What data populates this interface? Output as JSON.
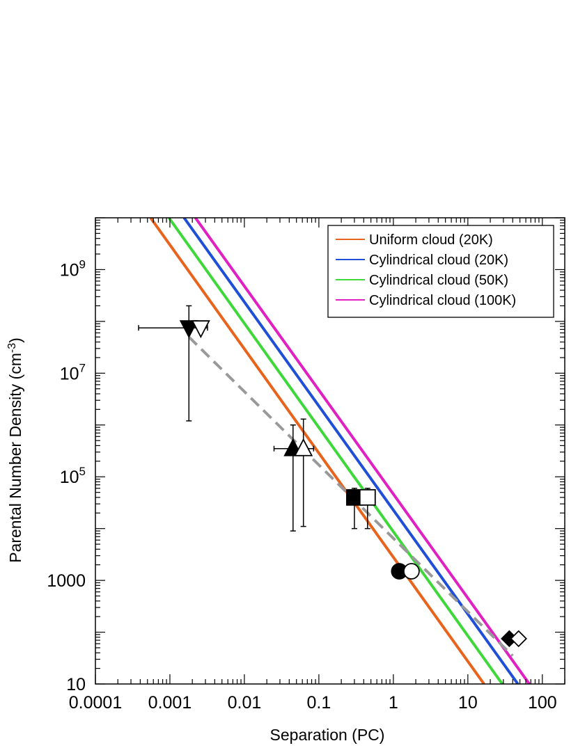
{
  "chart_data": {
    "type": "scatter",
    "xlabel": "Separation (PC)",
    "ylabel_main": "Parental Number Density (cm",
    "ylabel_sup": "-3",
    "ylabel_end": ")",
    "x_scale": "log",
    "y_scale": "log",
    "xlim": [
      0.0001,
      200
    ],
    "ylim": [
      10,
      10000000000
    ],
    "grid": false,
    "legend_placement": "top-right",
    "x_ticks": [
      {
        "value": 0.0001,
        "label": "0.0001"
      },
      {
        "value": 0.001,
        "label": "0.001"
      },
      {
        "value": 0.01,
        "label": "0.01"
      },
      {
        "value": 0.1,
        "label": "0.1"
      },
      {
        "value": 1,
        "label": "1"
      },
      {
        "value": 10,
        "label": "10"
      },
      {
        "value": 100,
        "label": "100"
      }
    ],
    "y_ticks": [
      {
        "value": 10,
        "base": "10",
        "exp": ""
      },
      {
        "value": 1000,
        "base": "1000",
        "exp": ""
      },
      {
        "value": 100000,
        "base": "10",
        "exp": "5"
      },
      {
        "value": 10000000,
        "base": "10",
        "exp": "7"
      },
      {
        "value": 1000000000,
        "base": "10",
        "exp": "9"
      }
    ],
    "model_lines": [
      {
        "name": "Uniform cloud (20K)",
        "color": "#e8641c",
        "x": [
          0.00055,
          16.5
        ],
        "y": [
          10000000000,
          10
        ]
      },
      {
        "name": "Cylindrical cloud (20K)",
        "color": "#1f4fd6",
        "x": [
          0.00155,
          47
        ],
        "y": [
          10000000000,
          10
        ]
      },
      {
        "name": "Cylindrical cloud (50K)",
        "color": "#3ed83a",
        "x": [
          0.00097,
          29
        ],
        "y": [
          10000000000,
          10
        ]
      },
      {
        "name": "Cylindrical cloud (100K)",
        "color": "#e020c0",
        "x": [
          0.0022,
          67
        ],
        "y": [
          10000000000,
          10
        ]
      }
    ],
    "fit_line": {
      "color": "#999999",
      "x": [
        0.0018,
        40
      ],
      "y": [
        50000000,
        35
      ]
    },
    "points": [
      {
        "marker": "triangle-down",
        "filled": true,
        "x": 0.0018,
        "y": 75000000,
        "xerr": [
          0.00038,
          0.0032
        ],
        "yerr": [
          1200000,
          200000000
        ]
      },
      {
        "marker": "triangle-down",
        "filled": false,
        "x": 0.0026,
        "y": 75000000
      },
      {
        "marker": "triangle-up",
        "filled": true,
        "x": 0.045,
        "y": 350000,
        "xerr": [
          0.025,
          0.085
        ],
        "yerr": [
          9000,
          1000000
        ]
      },
      {
        "marker": "triangle-up",
        "filled": false,
        "x": 0.062,
        "y": 350000,
        "yerr": [
          11000,
          1300000
        ]
      },
      {
        "marker": "square",
        "filled": true,
        "x": 0.3,
        "y": 40000,
        "yerr": [
          10000,
          60000
        ]
      },
      {
        "marker": "square",
        "filled": false,
        "x": 0.45,
        "y": 40000,
        "yerr": [
          10000,
          60000
        ]
      },
      {
        "marker": "circle",
        "filled": true,
        "x": 1.2,
        "y": 1500
      },
      {
        "marker": "circle",
        "filled": false,
        "x": 1.75,
        "y": 1500
      },
      {
        "marker": "diamond",
        "filled": true,
        "x": 36,
        "y": 75
      },
      {
        "marker": "diamond",
        "filled": false,
        "x": 48,
        "y": 75
      }
    ]
  }
}
